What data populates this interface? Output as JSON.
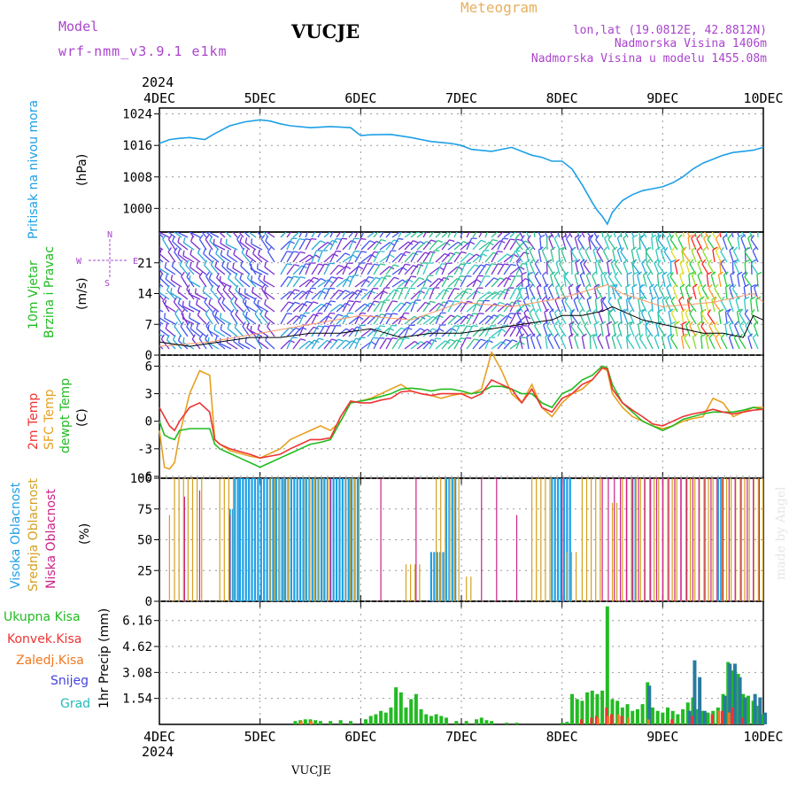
{
  "header": {
    "model_label": "Model",
    "model_name": "wrf-nmm_v3.9.1 e1km",
    "station": "VUCJE",
    "chart_title": "Meteogram",
    "coords": "lon,lat (19.0812E, 42.8812N)",
    "elevation": "Nadmorska Visina 1406m",
    "model_elevation": "Nadmorska Visina u modelu 1455.08m",
    "footer_station": "VUCJE",
    "credit": "made by Angel"
  },
  "colors": {
    "pressure": "#1ea0e6",
    "temp2m": "#ee3333",
    "sfc_temp": "#e6a020",
    "dewpt": "#22bb22",
    "high_cloud": "#1ea0e6",
    "mid_cloud": "#d4a020",
    "low_cloud": "#cc2288",
    "total_precip": "#22bb22",
    "conv_precip": "#ee3333",
    "frozen_precip": "#f07820",
    "snow": "#4444dd",
    "graupel": "#22bbbb",
    "wind_legend": "#aa44cc"
  },
  "chart_data": [
    {
      "type": "line",
      "name": "pressure",
      "ylabel_line1": "Pritisak na nivou mora",
      "unit": "(hPa)",
      "x_labels_top_year": "2024",
      "x_ticks": [
        "4DEC",
        "5DEC",
        "6DEC",
        "7DEC",
        "8DEC",
        "9DEC",
        "10DEC"
      ],
      "y_ticks": [
        1000,
        1008,
        1016,
        1024
      ],
      "ylim": [
        994,
        1025.5
      ],
      "x": [
        0,
        0.1,
        0.2,
        0.3,
        0.45,
        0.55,
        0.7,
        0.85,
        1.0,
        1.1,
        1.2,
        1.3,
        1.5,
        1.7,
        1.9,
        2.0,
        2.1,
        2.3,
        2.5,
        2.7,
        2.9,
        3.0,
        3.1,
        3.3,
        3.5,
        3.6,
        3.7,
        3.8,
        3.9,
        4.0,
        4.1,
        4.2,
        4.3,
        4.35,
        4.4,
        4.45,
        4.5,
        4.6,
        4.7,
        4.8,
        4.9,
        5.0,
        5.1,
        5.2,
        5.3,
        5.4,
        5.5,
        5.6,
        5.7,
        5.8,
        5.9,
        6.0
      ],
      "values": [
        1016.5,
        1017.5,
        1017.8,
        1018.0,
        1017.5,
        1019.0,
        1021.0,
        1022.0,
        1022.5,
        1022.2,
        1021.5,
        1021.0,
        1020.5,
        1020.8,
        1020.5,
        1018.5,
        1018.7,
        1018.8,
        1018.0,
        1017.0,
        1016.5,
        1016.0,
        1015.0,
        1014.5,
        1015.5,
        1014.5,
        1013.5,
        1013.0,
        1012.0,
        1012.0,
        1010.0,
        1006.0,
        1001.5,
        999.5,
        998.0,
        996.0,
        999.0,
        1002.0,
        1003.5,
        1004.5,
        1005.0,
        1005.5,
        1006.5,
        1008.0,
        1010.0,
        1011.5,
        1012.5,
        1013.5,
        1014.2,
        1014.5,
        1014.8,
        1015.5
      ]
    },
    {
      "type": "line",
      "name": "wind",
      "ylabel_line1": "10m Vjetar",
      "ylabel_line2": "Brzina i Pravac",
      "unit": "(m/s)",
      "y_ticks": [
        0,
        7,
        14,
        21
      ],
      "ylim": [
        0,
        28
      ],
      "compass_legend": [
        "N",
        "S",
        "W",
        "E"
      ],
      "gust_x": [
        0,
        0.5,
        1.0,
        1.5,
        2.0,
        2.5,
        3.0,
        3.5,
        4.0,
        4.3,
        4.45,
        4.6,
        5.0,
        5.5,
        5.9,
        6.0
      ],
      "gust_values": [
        2,
        3,
        5,
        7,
        9,
        8,
        12,
        11,
        13,
        15,
        16,
        14,
        11,
        12,
        14,
        12
      ],
      "speed_x": [
        0,
        0.3,
        0.6,
        0.9,
        1.2,
        1.5,
        1.8,
        2.1,
        2.4,
        2.7,
        3.0,
        3.3,
        3.6,
        3.9,
        4.0,
        4.2,
        4.4,
        4.5,
        4.6,
        4.8,
        5.0,
        5.2,
        5.4,
        5.6,
        5.8,
        5.9,
        6.0
      ],
      "speed_values": [
        3,
        2,
        3,
        4,
        4,
        5,
        5,
        6,
        4,
        5,
        5,
        6,
        7,
        8,
        9,
        9,
        10,
        11,
        10,
        8,
        7,
        6,
        5,
        5,
        4,
        9,
        8
      ]
    },
    {
      "type": "line",
      "name": "temperature",
      "ylabel_line1": "2m Temp",
      "ylabel_line2": "SFC Temp",
      "ylabel_line3": "dewpt Temp",
      "unit": "(C)",
      "y_ticks": [
        -6,
        -3,
        0,
        3,
        6
      ],
      "ylim": [
        -6.2,
        7.2
      ],
      "x": [
        0,
        0.05,
        0.1,
        0.15,
        0.2,
        0.3,
        0.4,
        0.5,
        0.55,
        0.6,
        0.7,
        0.8,
        0.9,
        1.0,
        1.1,
        1.2,
        1.3,
        1.4,
        1.5,
        1.6,
        1.7,
        1.8,
        1.9,
        2.0,
        2.1,
        2.2,
        2.3,
        2.4,
        2.5,
        2.6,
        2.7,
        2.8,
        2.9,
        3.0,
        3.1,
        3.2,
        3.3,
        3.4,
        3.5,
        3.6,
        3.7,
        3.8,
        3.9,
        4.0,
        4.1,
        4.2,
        4.3,
        4.4,
        4.45,
        4.5,
        4.6,
        4.7,
        4.8,
        4.9,
        5.0,
        5.1,
        5.2,
        5.3,
        5.4,
        5.5,
        5.6,
        5.7,
        5.8,
        5.9,
        6.0
      ],
      "temp2m": [
        1.5,
        0.5,
        -0.5,
        -1.0,
        0.0,
        1.5,
        2.0,
        1.0,
        -2.0,
        -2.5,
        -3.0,
        -3.3,
        -3.6,
        -4.0,
        -3.8,
        -3.6,
        -3.0,
        -2.5,
        -2.0,
        -2.0,
        -1.8,
        0.5,
        2.2,
        2.0,
        2.0,
        2.3,
        2.5,
        3.2,
        3.3,
        3.0,
        2.8,
        3.0,
        3.0,
        3.0,
        2.5,
        3.0,
        4.5,
        4.0,
        3.5,
        2.0,
        3.5,
        1.5,
        1.0,
        2.5,
        3.0,
        4.0,
        4.5,
        5.8,
        5.7,
        3.5,
        2.0,
        1.2,
        0.5,
        -0.3,
        -0.5,
        0.0,
        0.5,
        0.8,
        1.0,
        1.3,
        1.0,
        0.8,
        1.0,
        1.2,
        1.3
      ],
      "sfc_temp": [
        -1.0,
        -5.0,
        -5.2,
        -4.5,
        -1.5,
        3.0,
        5.5,
        5.0,
        -2.0,
        -2.5,
        -3.2,
        -3.5,
        -3.8,
        -4.0,
        -3.5,
        -3.0,
        -2.0,
        -1.5,
        -1.0,
        -0.5,
        -1.0,
        0.0,
        2.0,
        2.2,
        2.5,
        3.0,
        3.5,
        4.0,
        3.3,
        3.0,
        2.8,
        2.5,
        2.8,
        3.0,
        3.0,
        3.5,
        7.5,
        5.5,
        3.0,
        2.0,
        4.0,
        1.5,
        0.5,
        2.0,
        3.0,
        3.5,
        4.5,
        5.8,
        5.5,
        3.0,
        1.5,
        0.5,
        0.0,
        -0.5,
        -0.8,
        -0.5,
        0.0,
        0.3,
        0.5,
        2.5,
        2.0,
        0.5,
        1.0,
        1.5,
        1.5
      ],
      "dewpt": [
        0.0,
        -1.5,
        -1.8,
        -2.0,
        -1.0,
        -0.8,
        -0.8,
        -0.8,
        -2.5,
        -3.0,
        -3.5,
        -4.0,
        -4.5,
        -5.0,
        -4.5,
        -4.0,
        -3.5,
        -3.0,
        -2.5,
        -2.3,
        -2.0,
        0.0,
        2.0,
        2.2,
        2.4,
        2.7,
        3.0,
        3.5,
        3.6,
        3.5,
        3.3,
        3.5,
        3.5,
        3.3,
        3.0,
        3.2,
        3.8,
        3.8,
        3.5,
        3.0,
        3.0,
        2.0,
        1.5,
        3.0,
        3.5,
        4.5,
        5.0,
        6.0,
        5.8,
        4.0,
        2.0,
        1.0,
        0.0,
        -0.5,
        -1.0,
        -0.5,
        0.2,
        0.5,
        0.8,
        1.0,
        1.0,
        1.0,
        1.2,
        1.5,
        1.3
      ]
    },
    {
      "type": "bar",
      "name": "cloud_cover",
      "ylabel_line1": "Visoka Oblacnost",
      "ylabel_line2": "Srednja Oblacnost",
      "ylabel_line3": "Niska Oblacnost",
      "unit": "(%)",
      "y_ticks": [
        0,
        25,
        50,
        75,
        100
      ],
      "ylim": [
        0,
        100
      ],
      "high_segments": [
        [
          0.7,
          0.73,
          75
        ],
        [
          0.75,
          0.8,
          100
        ],
        [
          0.8,
          2.0,
          100
        ],
        [
          2.7,
          2.85,
          40
        ],
        [
          2.85,
          2.95,
          100
        ],
        [
          3.9,
          4.1,
          100
        ],
        [
          4.7,
          4.75,
          100
        ],
        [
          5.55,
          5.6,
          100
        ]
      ],
      "mid_segments": [
        [
          0.1,
          0.12,
          70
        ],
        [
          0.15,
          0.45,
          100
        ],
        [
          0.6,
          0.75,
          100
        ],
        [
          1.1,
          1.3,
          100
        ],
        [
          1.45,
          1.7,
          100
        ],
        [
          1.85,
          2.0,
          100
        ],
        [
          2.45,
          2.6,
          30
        ],
        [
          2.75,
          3.0,
          100
        ],
        [
          3.05,
          3.1,
          20
        ],
        [
          3.7,
          3.9,
          100
        ],
        [
          4.05,
          4.15,
          40
        ],
        [
          4.2,
          4.4,
          100
        ],
        [
          4.5,
          4.55,
          80
        ],
        [
          4.6,
          6.0,
          100
        ]
      ],
      "low_segments": [
        [
          0.25,
          0.3,
          85
        ],
        [
          0.4,
          0.45,
          90
        ],
        [
          0.7,
          0.72,
          70
        ],
        [
          1.7,
          1.75,
          100
        ],
        [
          2.2,
          2.25,
          100
        ],
        [
          2.55,
          2.6,
          100
        ],
        [
          3.2,
          3.25,
          100
        ],
        [
          3.35,
          3.4,
          100
        ],
        [
          3.55,
          3.6,
          70
        ],
        [
          4.0,
          4.05,
          100
        ],
        [
          4.4,
          6.0,
          100
        ]
      ]
    },
    {
      "type": "bar",
      "name": "precipitation",
      "legend": [
        "Ukupna Kisa",
        "Konvek.Kisa",
        "Zaledj.Kisa",
        "Snijeg",
        "Grad"
      ],
      "ylabel_line1": "1hr Precip",
      "unit": "(mm)",
      "y_ticks": [
        "1.54",
        "3.08",
        "4.62",
        "6.16"
      ],
      "ylim": [
        0,
        7.3
      ],
      "x_ticks": [
        "4DEC",
        "5DEC",
        "6DEC",
        "7DEC",
        "8DEC",
        "9DEC",
        "10DEC"
      ],
      "x_label_year": "2024",
      "total": [
        [
          1.35,
          0.2
        ],
        [
          1.4,
          0.25
        ],
        [
          1.45,
          0.3
        ],
        [
          1.5,
          0.3
        ],
        [
          1.55,
          0.25
        ],
        [
          1.6,
          0.2
        ],
        [
          1.7,
          0.2
        ],
        [
          1.8,
          0.25
        ],
        [
          1.9,
          0.2
        ],
        [
          2.05,
          0.3
        ],
        [
          2.1,
          0.5
        ],
        [
          2.15,
          0.6
        ],
        [
          2.2,
          0.8
        ],
        [
          2.25,
          0.7
        ],
        [
          2.3,
          1.0
        ],
        [
          2.35,
          2.2
        ],
        [
          2.4,
          1.9
        ],
        [
          2.45,
          1.0
        ],
        [
          2.5,
          1.5
        ],
        [
          2.55,
          1.8
        ],
        [
          2.6,
          0.9
        ],
        [
          2.65,
          0.6
        ],
        [
          2.7,
          0.5
        ],
        [
          2.75,
          0.6
        ],
        [
          2.8,
          0.5
        ],
        [
          2.85,
          0.4
        ],
        [
          2.95,
          0.2
        ],
        [
          3.05,
          0.2
        ],
        [
          3.15,
          0.3
        ],
        [
          3.2,
          0.4
        ],
        [
          3.25,
          0.25
        ],
        [
          3.3,
          0.2
        ],
        [
          3.45,
          0.1
        ],
        [
          3.55,
          0.1
        ],
        [
          4.0,
          0.1
        ],
        [
          4.05,
          0.15
        ],
        [
          4.1,
          1.8
        ],
        [
          4.15,
          1.5
        ],
        [
          4.2,
          1.4
        ],
        [
          4.25,
          1.9
        ],
        [
          4.3,
          2.0
        ],
        [
          4.35,
          1.8
        ],
        [
          4.4,
          2.0
        ],
        [
          4.45,
          7.0
        ],
        [
          4.5,
          1.5
        ],
        [
          4.55,
          1.4
        ],
        [
          4.6,
          1.0
        ],
        [
          4.65,
          1.2
        ],
        [
          4.7,
          0.8
        ],
        [
          4.75,
          0.9
        ],
        [
          4.8,
          1.2
        ],
        [
          4.85,
          2.5
        ],
        [
          4.9,
          1.0
        ],
        [
          4.95,
          0.8
        ],
        [
          5.0,
          0.7
        ],
        [
          5.05,
          1.0
        ],
        [
          5.1,
          0.8
        ],
        [
          5.15,
          0.6
        ],
        [
          5.2,
          0.9
        ],
        [
          5.25,
          1.3
        ],
        [
          5.3,
          1.6
        ],
        [
          5.35,
          0.9
        ],
        [
          5.4,
          0.8
        ],
        [
          5.45,
          0.7
        ],
        [
          5.5,
          0.8
        ],
        [
          5.55,
          1.0
        ],
        [
          5.6,
          1.8
        ],
        [
          5.65,
          3.7
        ],
        [
          5.7,
          3.2
        ],
        [
          5.75,
          3.0
        ],
        [
          5.8,
          1.8
        ],
        [
          5.85,
          1.7
        ],
        [
          5.9,
          1.4
        ],
        [
          5.95,
          1.1
        ],
        [
          6.0,
          0.6
        ]
      ],
      "snow": [
        [
          4.85,
          2.3
        ],
        [
          5.25,
          0.8
        ],
        [
          5.3,
          3.8
        ],
        [
          5.35,
          2.8
        ],
        [
          5.4,
          0.8
        ],
        [
          5.6,
          1.7
        ],
        [
          5.65,
          3.6
        ],
        [
          5.7,
          3.6
        ],
        [
          5.75,
          2.8
        ],
        [
          5.8,
          1.6
        ],
        [
          5.9,
          1.8
        ],
        [
          5.95,
          1.6
        ],
        [
          6.0,
          0.7
        ]
      ],
      "conv": [
        [
          4.2,
          0.3
        ],
        [
          4.3,
          0.4
        ],
        [
          4.35,
          0.5
        ],
        [
          4.45,
          1.0
        ],
        [
          4.5,
          0.6
        ],
        [
          4.6,
          0.5
        ],
        [
          5.1,
          0.3
        ],
        [
          5.3,
          0.5
        ],
        [
          5.5,
          0.6
        ],
        [
          5.6,
          0.8
        ],
        [
          5.7,
          1.0
        ],
        [
          5.8,
          0.4
        ]
      ],
      "frozen": [
        [
          1.4,
          0.2
        ],
        [
          1.5,
          0.2
        ],
        [
          4.35,
          0.4
        ],
        [
          4.45,
          0.5
        ],
        [
          4.55,
          0.6
        ],
        [
          4.65,
          0.4
        ],
        [
          4.85,
          0.3
        ],
        [
          5.55,
          0.8
        ],
        [
          5.65,
          0.7
        ]
      ]
    }
  ]
}
